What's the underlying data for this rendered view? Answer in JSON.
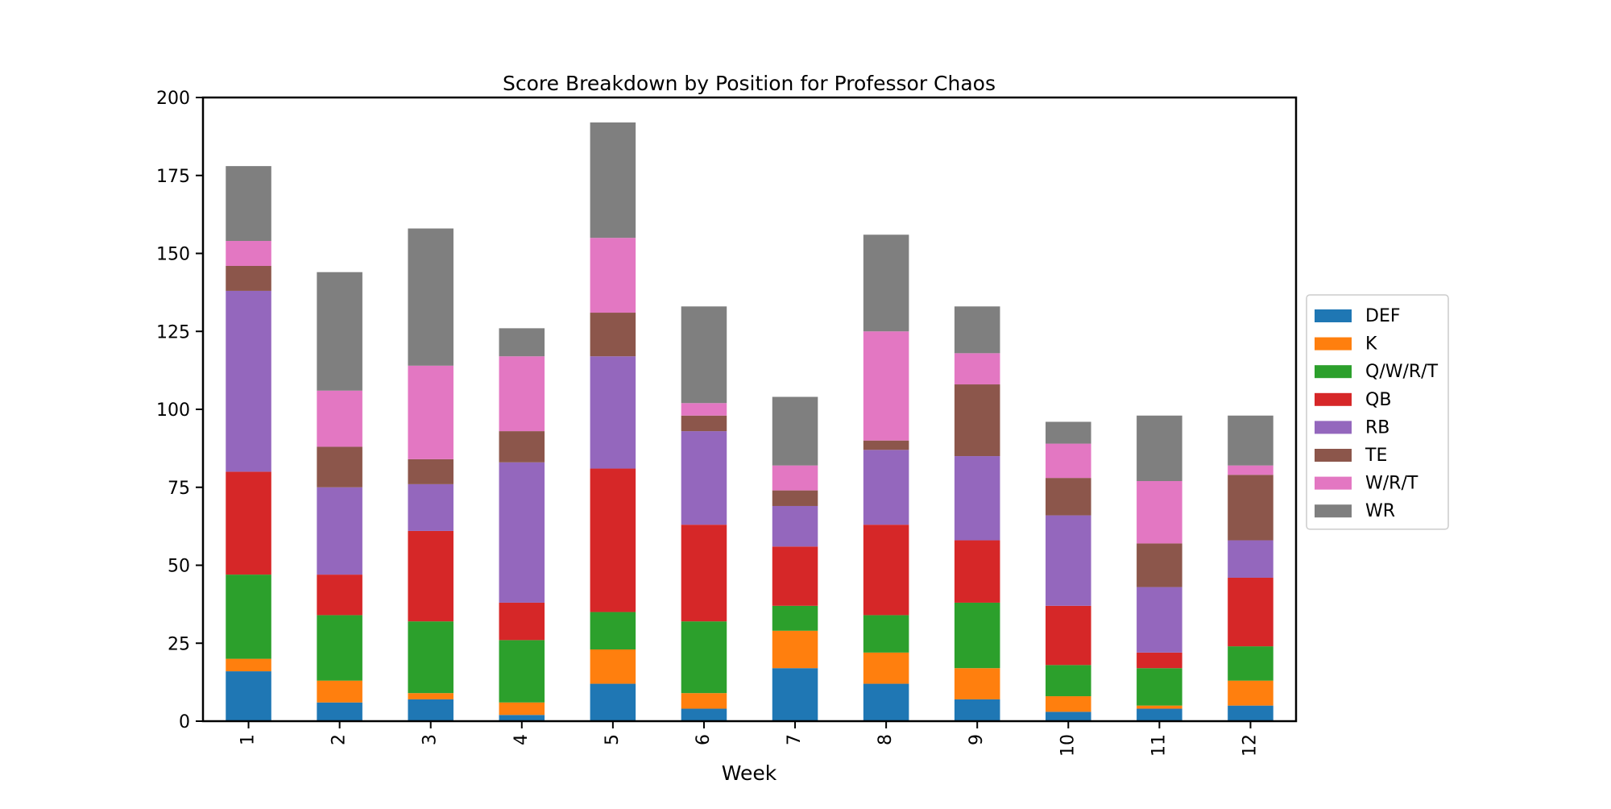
{
  "chart_data": {
    "type": "bar",
    "stacked": true,
    "title": "Score Breakdown by Position for Professor Chaos",
    "xlabel": "Week",
    "ylabel": "",
    "ylim": [
      0,
      200
    ],
    "yticks": [
      0,
      25,
      50,
      75,
      100,
      125,
      150,
      175,
      200
    ],
    "categories": [
      "1",
      "2",
      "3",
      "4",
      "5",
      "6",
      "7",
      "8",
      "9",
      "10",
      "11",
      "12"
    ],
    "legend_position": "center-right, outside plot",
    "grid": false,
    "series": [
      {
        "name": "DEF",
        "color": "#1f77b4",
        "values": [
          16,
          6,
          7,
          2,
          12,
          4,
          17,
          12,
          7,
          3,
          4,
          5
        ]
      },
      {
        "name": "K",
        "color": "#ff7f0e",
        "values": [
          4,
          7,
          2,
          4,
          11,
          5,
          12,
          10,
          10,
          5,
          1,
          8
        ]
      },
      {
        "name": "Q/W/R/T",
        "color": "#2ca02c",
        "values": [
          27,
          21,
          23,
          20,
          12,
          23,
          8,
          12,
          21,
          10,
          12,
          11
        ]
      },
      {
        "name": "QB",
        "color": "#d62728",
        "values": [
          33,
          13,
          29,
          12,
          46,
          31,
          19,
          29,
          20,
          19,
          5,
          22
        ]
      },
      {
        "name": "RB",
        "color": "#9467bd",
        "values": [
          58,
          28,
          15,
          45,
          36,
          30,
          13,
          24,
          27,
          29,
          21,
          12
        ]
      },
      {
        "name": "TE",
        "color": "#8c564b",
        "values": [
          8,
          13,
          8,
          10,
          14,
          5,
          5,
          3,
          23,
          12,
          14,
          21
        ]
      },
      {
        "name": "W/R/T",
        "color": "#e377c2",
        "values": [
          8,
          18,
          30,
          24,
          24,
          4,
          8,
          35,
          10,
          11,
          20,
          3
        ]
      },
      {
        "name": "WR",
        "color": "#7f7f7f",
        "values": [
          24,
          38,
          44,
          9,
          37,
          31,
          22,
          31,
          15,
          7,
          21,
          16
        ]
      }
    ]
  }
}
